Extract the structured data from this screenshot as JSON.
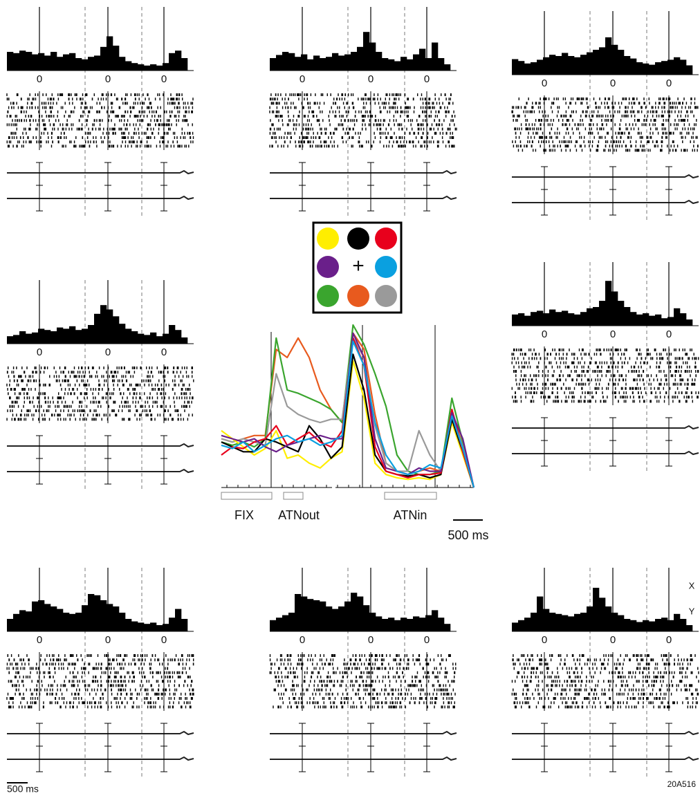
{
  "panels": [
    {
      "zero_labels": [
        "0",
        "0",
        "0"
      ],
      "psth": [
        30,
        28,
        32,
        30,
        26,
        28,
        24,
        30,
        22,
        26,
        28,
        20,
        18,
        22,
        24,
        38,
        55,
        40,
        22,
        15,
        12,
        10,
        8,
        10,
        8,
        12,
        28,
        32,
        20,
        0
      ]
    },
    {
      "zero_labels": [
        "0",
        "0",
        "0"
      ],
      "psth": [
        20,
        25,
        30,
        28,
        22,
        26,
        18,
        24,
        20,
        22,
        28,
        24,
        26,
        30,
        38,
        62,
        45,
        30,
        20,
        18,
        15,
        22,
        18,
        26,
        35,
        20,
        45,
        20,
        10,
        0
      ]
    },
    {
      "zero_labels": [
        "0",
        "0",
        "0"
      ],
      "psth": [
        25,
        22,
        18,
        20,
        24,
        28,
        32,
        30,
        35,
        30,
        28,
        32,
        36,
        40,
        44,
        60,
        48,
        40,
        30,
        26,
        20,
        18,
        16,
        20,
        22,
        24,
        28,
        24,
        15,
        0
      ]
    },
    {
      "zero_labels": [
        "0",
        "0",
        "0"
      ],
      "psth": [
        12,
        14,
        20,
        16,
        18,
        24,
        22,
        20,
        26,
        24,
        28,
        22,
        24,
        30,
        48,
        62,
        55,
        44,
        32,
        24,
        20,
        16,
        14,
        18,
        12,
        16,
        30,
        22,
        10,
        0
      ]
    },
    {
      "zero_labels": [
        "0",
        "0",
        "0"
      ],
      "psth": [
        18,
        20,
        16,
        22,
        24,
        20,
        26,
        22,
        24,
        20,
        18,
        22,
        28,
        30,
        40,
        72,
        55,
        40,
        30,
        22,
        18,
        20,
        16,
        18,
        12,
        14,
        28,
        20,
        10,
        0
      ]
    },
    {
      "zero_labels": [
        "0",
        "0",
        "0"
      ],
      "psth": [
        20,
        28,
        34,
        32,
        48,
        50,
        44,
        40,
        36,
        30,
        28,
        30,
        42,
        60,
        58,
        50,
        44,
        40,
        30,
        20,
        16,
        14,
        12,
        14,
        10,
        12,
        22,
        36,
        20,
        0
      ]
    },
    {
      "zero_labels": [
        "0",
        "0",
        "0"
      ],
      "psth": [
        18,
        22,
        26,
        30,
        60,
        56,
        52,
        50,
        48,
        40,
        36,
        40,
        48,
        62,
        56,
        42,
        30,
        24,
        20,
        22,
        18,
        22,
        20,
        24,
        22,
        26,
        34,
        22,
        12,
        0
      ]
    },
    {
      "zero_labels": [
        "0",
        "0",
        "0"
      ],
      "psth": [
        14,
        18,
        22,
        30,
        56,
        36,
        30,
        28,
        26,
        24,
        28,
        30,
        40,
        70,
        54,
        40,
        30,
        26,
        20,
        18,
        15,
        18,
        16,
        20,
        22,
        18,
        28,
        20,
        10,
        0
      ]
    }
  ],
  "legend": {
    "center": "+",
    "colors": [
      "#ffee00",
      "#000000",
      "#e8001c",
      "#6a1f8a",
      null,
      "#0aa0e0",
      "#3aa52e",
      "#e85a1e",
      "#9a9a9a"
    ]
  },
  "population": {
    "epochs": [
      "FIX",
      "ATNout",
      "ATNin"
    ],
    "scale_bar": "500 ms",
    "series": [
      {
        "color": "#e85a1e",
        "values": [
          30,
          28,
          30,
          32,
          32,
          85,
          80,
          92,
          80,
          60,
          48,
          40,
          95,
          85,
          45,
          15,
          10,
          8,
          10,
          12,
          10,
          48,
          25,
          0
        ]
      },
      {
        "color": "#3aa52e",
        "values": [
          28,
          26,
          28,
          25,
          30,
          92,
          60,
          58,
          55,
          52,
          48,
          40,
          100,
          88,
          70,
          50,
          20,
          10,
          8,
          8,
          10,
          55,
          28,
          0
        ]
      },
      {
        "color": "#9a9a9a",
        "values": [
          30,
          28,
          30,
          28,
          26,
          70,
          50,
          45,
          42,
          40,
          42,
          42,
          92,
          80,
          38,
          15,
          10,
          10,
          35,
          20,
          10,
          45,
          25,
          0
        ]
      },
      {
        "color": "#ffee00",
        "values": [
          35,
          30,
          25,
          20,
          24,
          35,
          18,
          20,
          15,
          12,
          18,
          22,
          78,
          55,
          15,
          8,
          6,
          5,
          6,
          5,
          8,
          40,
          20,
          0
        ]
      },
      {
        "color": "#000000",
        "values": [
          28,
          25,
          22,
          22,
          30,
          28,
          25,
          22,
          38,
          30,
          18,
          25,
          82,
          60,
          20,
          10,
          8,
          7,
          8,
          6,
          8,
          42,
          22,
          0
        ]
      },
      {
        "color": "#e8001c",
        "values": [
          20,
          25,
          24,
          28,
          30,
          38,
          26,
          30,
          34,
          28,
          25,
          35,
          92,
          75,
          25,
          10,
          8,
          6,
          8,
          8,
          9,
          48,
          22,
          0
        ]
      },
      {
        "color": "#6a1f8a",
        "values": [
          32,
          30,
          28,
          30,
          25,
          22,
          26,
          28,
          30,
          32,
          30,
          30,
          95,
          80,
          30,
          12,
          10,
          8,
          12,
          10,
          10,
          46,
          30,
          0
        ]
      },
      {
        "color": "#0aa0e0",
        "values": [
          26,
          24,
          28,
          22,
          26,
          30,
          32,
          28,
          30,
          26,
          28,
          32,
          90,
          75,
          40,
          20,
          10,
          8,
          10,
          14,
          12,
          44,
          24,
          0
        ]
      }
    ]
  },
  "scale_bar": "500 ms",
  "eye_labels": [
    "X",
    "Y"
  ],
  "figure_id": "20A516"
}
